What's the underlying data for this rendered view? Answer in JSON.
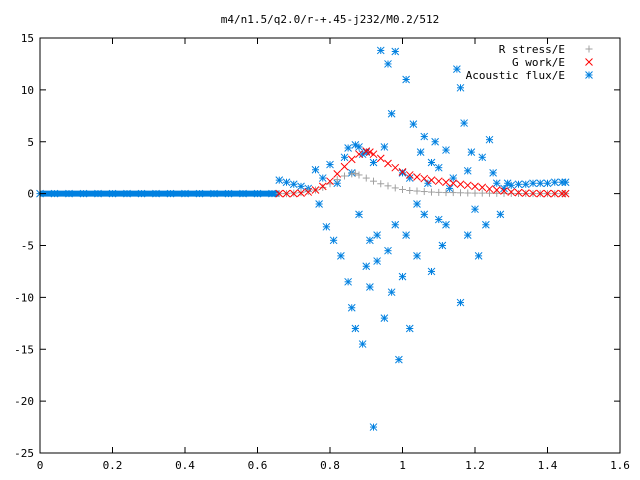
{
  "chart_data": {
    "type": "scatter",
    "title": "m4/n1.5/q2.0/r-+.45-j232/M0.2/512",
    "xlabel": "",
    "ylabel": "",
    "xlim": [
      0,
      1.6
    ],
    "ylim": [
      -25,
      15
    ],
    "xticks": [
      0,
      0.2,
      0.4,
      0.6,
      0.8,
      1,
      1.2,
      1.4,
      1.6
    ],
    "xtick_labels": [
      "0",
      "0.2",
      "0.4",
      "0.6",
      "0.8",
      "1",
      "1.2",
      "1.4",
      "1.6"
    ],
    "yticks": [
      -25,
      -20,
      -15,
      -10,
      -5,
      0,
      5,
      10,
      15
    ],
    "ytick_labels": [
      "-25",
      "-20",
      "-15",
      "-10",
      "-5",
      "0",
      "5",
      "10",
      "15"
    ],
    "grid": false,
    "legend_position": "top-right",
    "series": [
      {
        "name": "R stress/E",
        "marker": "plus",
        "color": "#a0a0a0",
        "x": [
          0.66,
          0.68,
          0.7,
          0.72,
          0.74,
          0.76,
          0.78,
          0.8,
          0.82,
          0.84,
          0.86,
          0.87,
          0.88,
          0.9,
          0.92,
          0.94,
          0.96,
          0.98,
          1.0,
          1.02,
          1.04,
          1.06,
          1.08,
          1.1,
          1.12,
          1.14,
          1.16,
          1.18,
          1.2,
          1.22,
          1.24,
          1.26,
          1.28,
          1.3,
          1.32,
          1.34,
          1.36,
          1.38,
          1.4,
          1.42,
          1.44,
          1.45
        ],
        "y": [
          0.0,
          0.0,
          0.05,
          0.1,
          0.2,
          0.35,
          0.6,
          0.95,
          1.35,
          1.7,
          1.9,
          1.95,
          1.8,
          1.5,
          1.2,
          0.95,
          0.75,
          0.55,
          0.4,
          0.3,
          0.25,
          0.2,
          0.15,
          0.12,
          0.1,
          0.1,
          0.08,
          0.06,
          0.05,
          0.05,
          0.04,
          0.03,
          0.02,
          0.02,
          0.01,
          0.01,
          0.0,
          0.0,
          0.0,
          0.0,
          0.0,
          0.0
        ]
      },
      {
        "name": "G work/E",
        "marker": "cross",
        "color": "#ff0000",
        "x": [
          0.66,
          0.68,
          0.7,
          0.72,
          0.74,
          0.76,
          0.78,
          0.8,
          0.82,
          0.84,
          0.86,
          0.88,
          0.9,
          0.91,
          0.92,
          0.94,
          0.96,
          0.98,
          1.0,
          1.02,
          1.04,
          1.06,
          1.08,
          1.1,
          1.12,
          1.14,
          1.16,
          1.18,
          1.2,
          1.22,
          1.24,
          1.26,
          1.28,
          1.3,
          1.32,
          1.34,
          1.36,
          1.38,
          1.4,
          1.42,
          1.44,
          1.45
        ],
        "y": [
          0.0,
          0.0,
          0.0,
          0.05,
          0.15,
          0.35,
          0.7,
          1.2,
          1.9,
          2.6,
          3.3,
          3.8,
          4.1,
          4.0,
          3.8,
          3.4,
          2.9,
          2.5,
          2.1,
          1.8,
          1.6,
          1.45,
          1.3,
          1.2,
          1.1,
          1.0,
          0.9,
          0.8,
          0.7,
          0.6,
          0.45,
          0.35,
          0.25,
          0.15,
          0.1,
          0.05,
          0.02,
          0.0,
          0.0,
          0.0,
          0.0,
          0.0
        ]
      },
      {
        "name": "Acoustic flux/E",
        "marker": "star",
        "color": "#0080e0",
        "x": [
          0.0,
          0.04,
          0.08,
          0.12,
          0.16,
          0.2,
          0.24,
          0.28,
          0.32,
          0.36,
          0.4,
          0.44,
          0.48,
          0.52,
          0.56,
          0.6,
          0.64,
          0.66,
          0.68,
          0.7,
          0.72,
          0.74,
          0.76,
          0.77,
          0.78,
          0.79,
          0.8,
          0.81,
          0.82,
          0.83,
          0.84,
          0.85,
          0.85,
          0.86,
          0.86,
          0.87,
          0.87,
          0.88,
          0.88,
          0.89,
          0.89,
          0.9,
          0.9,
          0.91,
          0.91,
          0.92,
          0.92,
          0.93,
          0.93,
          0.94,
          0.95,
          0.95,
          0.96,
          0.96,
          0.97,
          0.97,
          0.98,
          0.98,
          0.99,
          1.0,
          1.0,
          1.01,
          1.01,
          1.02,
          1.02,
          1.03,
          1.04,
          1.04,
          1.05,
          1.06,
          1.06,
          1.07,
          1.08,
          1.08,
          1.09,
          1.1,
          1.1,
          1.11,
          1.12,
          1.12,
          1.13,
          1.14,
          1.15,
          1.16,
          1.16,
          1.17,
          1.18,
          1.18,
          1.19,
          1.2,
          1.21,
          1.22,
          1.23,
          1.24,
          1.25,
          1.26,
          1.27,
          1.28,
          1.29,
          1.3,
          1.32,
          1.34,
          1.36,
          1.38,
          1.4,
          1.42,
          1.44,
          1.45
        ],
        "y": [
          0.0,
          0.0,
          0.0,
          0.0,
          0.0,
          0.0,
          0.0,
          0.0,
          0.0,
          0.0,
          0.0,
          0.0,
          0.0,
          0.0,
          0.0,
          0.0,
          0.0,
          1.3,
          1.1,
          0.9,
          0.7,
          0.5,
          2.3,
          -1.0,
          1.5,
          -3.2,
          2.8,
          -4.5,
          1.0,
          -6.0,
          3.5,
          4.4,
          -8.5,
          2.0,
          -11.0,
          4.7,
          -13.0,
          -2.0,
          4.5,
          -14.5,
          3.8,
          -7.0,
          4.0,
          -9.0,
          -4.5,
          -22.5,
          3.0,
          -6.5,
          -4.0,
          13.8,
          -12.0,
          4.5,
          -5.5,
          12.5,
          7.7,
          -9.5,
          -3.0,
          13.7,
          -16.0,
          2.0,
          -8.0,
          11.0,
          -4.0,
          -13.0,
          1.5,
          6.7,
          -6.0,
          -1.0,
          4.0,
          -2.0,
          5.5,
          1.0,
          -7.5,
          3.0,
          5.0,
          -2.5,
          2.5,
          -5.0,
          4.2,
          -3.0,
          0.5,
          1.5,
          12.0,
          10.2,
          -10.5,
          6.8,
          -4.0,
          2.2,
          4.0,
          -1.5,
          -6.0,
          3.5,
          -3.0,
          5.2,
          2.0,
          1.0,
          -2.0,
          0.5,
          1.0,
          0.8,
          0.9,
          0.9,
          1.0,
          1.0,
          1.0,
          1.1,
          1.1,
          1.1
        ]
      }
    ]
  }
}
